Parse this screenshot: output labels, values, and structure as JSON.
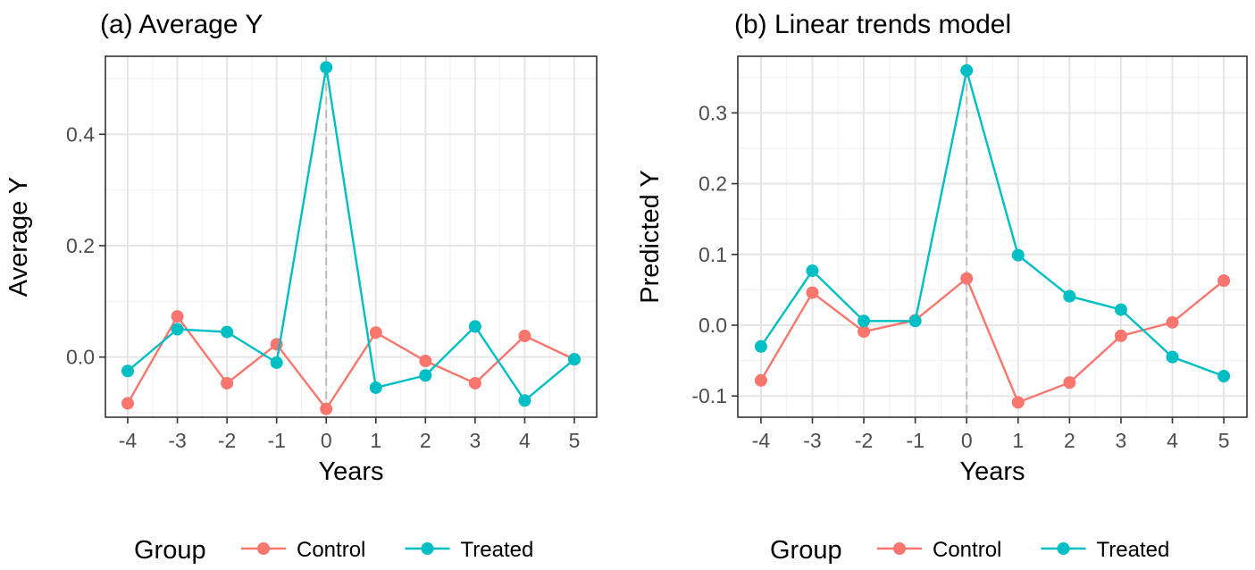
{
  "chart_data": [
    {
      "type": "line",
      "title": "(a) Average Y",
      "xlabel": "Years",
      "ylabel": "Average Y",
      "x": [
        -4,
        -3,
        -2,
        -1,
        0,
        1,
        2,
        3,
        4,
        5
      ],
      "x_ticks": [
        -4,
        -3,
        -2,
        -1,
        0,
        1,
        2,
        3,
        4,
        5
      ],
      "x_tick_labels": [
        "-4",
        "-3",
        "-2",
        "-1",
        "0",
        "1",
        "2",
        "3",
        "4",
        "5"
      ],
      "xlim": [
        -4.45,
        5.45
      ],
      "y_ticks": [
        0.0,
        0.2,
        0.4
      ],
      "y_tick_labels": [
        "0.0",
        "0.2",
        "0.4"
      ],
      "ylim": [
        -0.108,
        0.54
      ],
      "grid": true,
      "vline_x": 0,
      "series": [
        {
          "name": "Control",
          "color": "#F8766D",
          "values": [
            -0.083,
            0.073,
            -0.047,
            0.023,
            -0.093,
            0.044,
            -0.007,
            -0.047,
            0.038,
            -0.004
          ]
        },
        {
          "name": "Treated",
          "color": "#00BFC4",
          "values": [
            -0.025,
            0.05,
            0.045,
            -0.01,
            0.52,
            -0.055,
            -0.033,
            0.055,
            -0.078,
            -0.004
          ]
        }
      ],
      "legend": {
        "title": "Group",
        "position": "bottom"
      }
    },
    {
      "type": "line",
      "title": "(b) Linear trends model",
      "xlabel": "Years",
      "ylabel": "Predicted Y",
      "x": [
        -4,
        -3,
        -2,
        -1,
        0,
        1,
        2,
        3,
        4,
        5
      ],
      "x_ticks": [
        -4,
        -3,
        -2,
        -1,
        0,
        1,
        2,
        3,
        4,
        5
      ],
      "x_tick_labels": [
        "-4",
        "-3",
        "-2",
        "-1",
        "0",
        "1",
        "2",
        "3",
        "4",
        "5"
      ],
      "xlim": [
        -4.45,
        5.45
      ],
      "y_ticks": [
        -0.1,
        0.0,
        0.1,
        0.2,
        0.3
      ],
      "y_tick_labels": [
        "-0.1",
        "0.0",
        "0.1",
        "0.2",
        "0.3"
      ],
      "ylim": [
        -0.13,
        0.38
      ],
      "grid": true,
      "vline_x": 0,
      "series": [
        {
          "name": "Control",
          "color": "#F8766D",
          "values": [
            -0.078,
            0.046,
            -0.009,
            0.007,
            0.066,
            -0.109,
            -0.081,
            -0.015,
            0.004,
            0.063
          ]
        },
        {
          "name": "Treated",
          "color": "#00BFC4",
          "values": [
            -0.03,
            0.077,
            0.006,
            0.006,
            0.36,
            0.099,
            0.041,
            0.022,
            -0.045,
            -0.072
          ]
        }
      ],
      "legend": {
        "title": "Group",
        "position": "bottom"
      }
    }
  ]
}
